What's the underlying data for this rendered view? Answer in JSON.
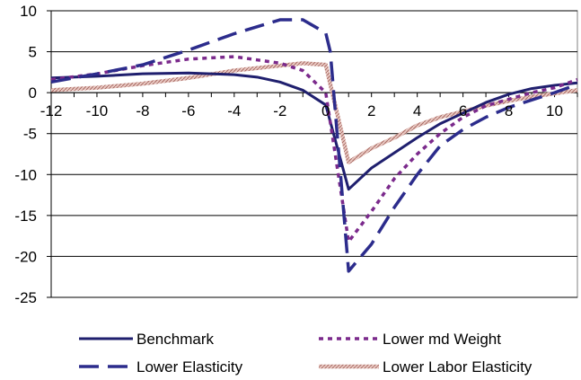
{
  "chart_data": {
    "type": "line",
    "title": "",
    "xlabel": "",
    "ylabel": "",
    "xlim": [
      -12,
      11
    ],
    "ylim": [
      -25,
      10
    ],
    "x_ticks": [
      -12,
      -10,
      -8,
      -6,
      -4,
      -2,
      0,
      2,
      4,
      6,
      8,
      10
    ],
    "y_ticks": [
      10,
      5,
      0,
      -5,
      -10,
      -15,
      -20,
      -25
    ],
    "grid": "horizontal",
    "legend_position": "bottom",
    "series": [
      {
        "name": "Benchmark",
        "color": "#1f1f6e",
        "dash": "solid",
        "points": [
          [
            -12,
            1.8
          ],
          [
            -10,
            2.0
          ],
          [
            -8,
            2.3
          ],
          [
            -6,
            2.4
          ],
          [
            -4,
            2.2
          ],
          [
            -3,
            1.9
          ],
          [
            -2,
            1.3
          ],
          [
            -1,
            0.3
          ],
          [
            0,
            -1.5
          ],
          [
            1,
            -11.8
          ],
          [
            2,
            -9.2
          ],
          [
            4,
            -5.5
          ],
          [
            5,
            -3.8
          ],
          [
            6,
            -2.5
          ],
          [
            7,
            -1.2
          ],
          [
            8,
            -0.2
          ],
          [
            9,
            0.5
          ],
          [
            10,
            0.9
          ],
          [
            11,
            1.2
          ]
        ]
      },
      {
        "name": "Lower md Weight",
        "color": "#7b2a8c",
        "dash": "dotted",
        "points": [
          [
            -12,
            1.6
          ],
          [
            -10,
            2.3
          ],
          [
            -8,
            3.3
          ],
          [
            -6,
            4.1
          ],
          [
            -4,
            4.4
          ],
          [
            -3,
            4.0
          ],
          [
            -2,
            3.6
          ],
          [
            -1,
            2.7
          ],
          [
            0,
            0.0
          ],
          [
            1,
            -18.2
          ],
          [
            2,
            -14.5
          ],
          [
            3,
            -10.5
          ],
          [
            4,
            -7.5
          ],
          [
            5,
            -5.0
          ],
          [
            6,
            -3.0
          ],
          [
            7,
            -1.6
          ],
          [
            8,
            -0.8
          ],
          [
            9,
            0.0
          ],
          [
            10,
            0.6
          ],
          [
            11,
            1.6
          ]
        ]
      },
      {
        "name": "Lower Elasticity",
        "color": "#2c2c8c",
        "dash": "dashed",
        "points": [
          [
            -12,
            1.3
          ],
          [
            -10,
            2.3
          ],
          [
            -8,
            3.4
          ],
          [
            -6,
            5.2
          ],
          [
            -4,
            7.2
          ],
          [
            -2,
            8.9
          ],
          [
            -1,
            8.9
          ],
          [
            0,
            7.3
          ],
          [
            0.2,
            5.0
          ],
          [
            1,
            -21.8
          ],
          [
            2,
            -18.5
          ],
          [
            3,
            -14.0
          ],
          [
            4,
            -10.0
          ],
          [
            5,
            -6.5
          ],
          [
            6,
            -4.5
          ],
          [
            7,
            -3.0
          ],
          [
            8,
            -1.8
          ],
          [
            9,
            -0.9
          ],
          [
            10,
            0.0
          ],
          [
            11,
            1.0
          ]
        ]
      },
      {
        "name": "Lower Labor Elasticity",
        "color": "#c08a85",
        "dash": "hatched",
        "points": [
          [
            -12,
            0.3
          ],
          [
            -10,
            0.6
          ],
          [
            -8,
            1.1
          ],
          [
            -6,
            1.8
          ],
          [
            -4,
            2.7
          ],
          [
            -2,
            3.3
          ],
          [
            -1,
            3.6
          ],
          [
            0,
            3.4
          ],
          [
            1,
            -8.5
          ],
          [
            2,
            -6.8
          ],
          [
            3,
            -5.5
          ],
          [
            4,
            -4.0
          ],
          [
            5,
            -3.0
          ],
          [
            6,
            -2.3
          ],
          [
            7,
            -1.6
          ],
          [
            8,
            -1.0
          ],
          [
            9,
            -0.5
          ],
          [
            10,
            -0.1
          ],
          [
            11,
            0.3
          ]
        ]
      }
    ]
  }
}
